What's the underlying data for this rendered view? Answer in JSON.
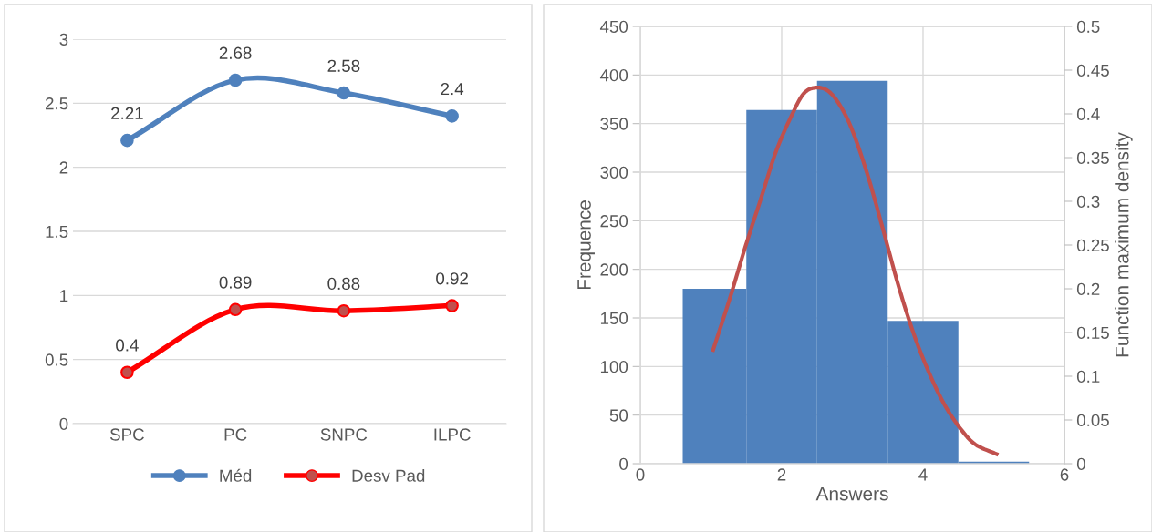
{
  "chart_data": [
    {
      "type": "line",
      "categories": [
        "SPC",
        "PC",
        "SNPC",
        "ILPC"
      ],
      "ylim": [
        0,
        3
      ],
      "yticks": [
        0,
        0.5,
        1,
        1.5,
        2,
        2.5,
        3
      ],
      "grid": "y",
      "legend": "bottom",
      "data_labels": true,
      "marker": "circle",
      "line_style": "solid",
      "series": [
        {
          "name": "Méd",
          "color": "#4f81bd",
          "values": [
            2.21,
            2.68,
            2.58,
            2.4
          ]
        },
        {
          "name": "Desv Pad",
          "color": "#ff0000",
          "values": [
            0.4,
            0.89,
            0.88,
            0.92
          ]
        }
      ]
    },
    {
      "type": "histogram",
      "xlabel": "Answers",
      "ylabel": "Frequence",
      "y2label": "Function maximum density",
      "xlim": [
        0,
        6
      ],
      "xticks": [
        0,
        2,
        4,
        6
      ],
      "ylim": [
        0,
        450
      ],
      "yticks": [
        0,
        50,
        100,
        150,
        200,
        250,
        300,
        350,
        400,
        450
      ],
      "y2lim": [
        0,
        0.5
      ],
      "y2ticks": [
        0,
        0.05,
        0.1,
        0.15,
        0.2,
        0.25,
        0.3,
        0.35,
        0.4,
        0.45,
        0.5
      ],
      "grid": true,
      "series": [
        {
          "type": "histogram",
          "color": "#4f81bd",
          "bins": [
            0.6,
            1.5,
            2.5,
            3.5,
            4.5,
            5.5
          ],
          "values": [
            180,
            364,
            394,
            147,
            2
          ]
        },
        {
          "type": "line",
          "axis": "y2",
          "color": "#c0504d",
          "x": [
            1.03,
            1.27,
            1.49,
            1.71,
            1.92,
            2.14,
            2.31,
            2.48,
            2.66,
            2.83,
            3.0,
            3.22,
            3.44,
            3.65,
            3.87,
            4.09,
            4.3,
            4.52,
            4.74,
            5.04
          ],
          "values": [
            0.13,
            0.19,
            0.249,
            0.304,
            0.357,
            0.398,
            0.423,
            0.43,
            0.426,
            0.409,
            0.381,
            0.329,
            0.266,
            0.204,
            0.148,
            0.103,
            0.068,
            0.041,
            0.022,
            0.011
          ]
        }
      ]
    }
  ]
}
